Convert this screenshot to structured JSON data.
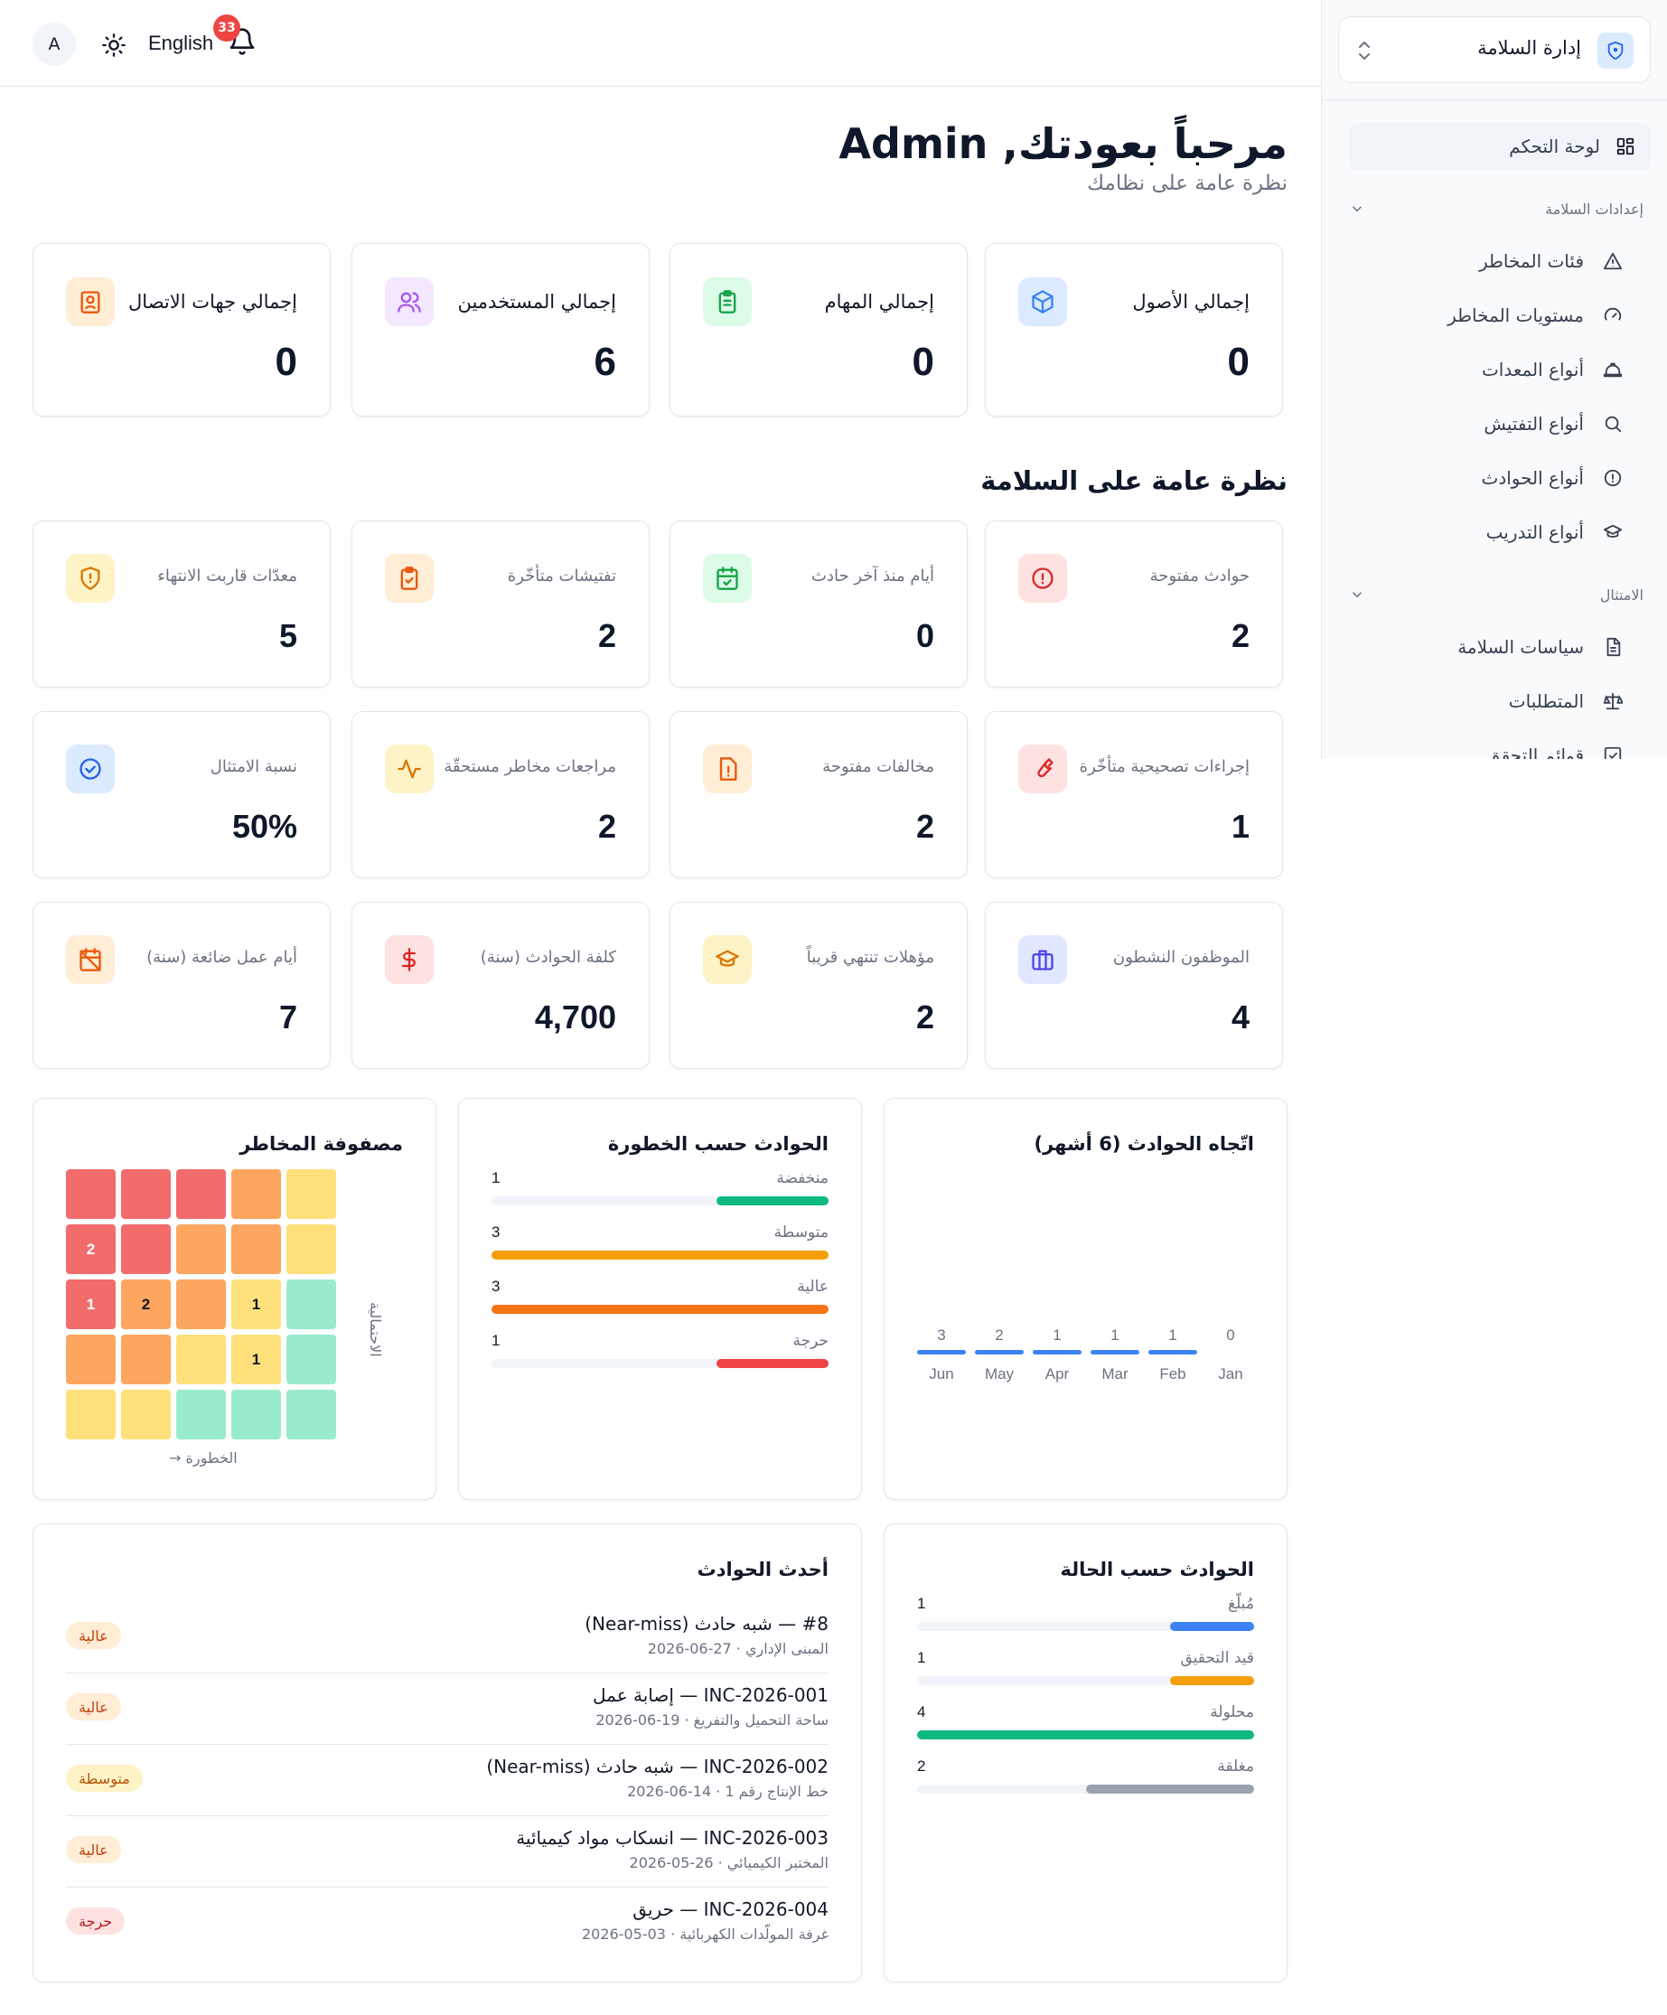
{
  "header": {
    "avatar_initial": "A",
    "theme_icon": "sun-icon",
    "language": "English",
    "notification_count": "33",
    "bell_icon": "bell-icon"
  },
  "sidebar": {
    "brand": "إدارة السلامة",
    "items": [
      {
        "label": "لوحة التحكم",
        "icon": "dashboard-grid-icon"
      }
    ],
    "sections": [
      {
        "title": "إعدادات السلامة",
        "items": [
          {
            "label": "فئات المخاطر",
            "icon": "warning-triangle-icon"
          },
          {
            "label": "مستويات المخاطر",
            "icon": "gauge-icon"
          },
          {
            "label": "أنواع المعدات",
            "icon": "hard-hat-icon"
          },
          {
            "label": "أنواع التفتيش",
            "icon": "search-icon"
          },
          {
            "label": "أنواع الحوادث",
            "icon": "alert-circle-icon"
          },
          {
            "label": "أنواع التدريب",
            "icon": "graduation-cap-icon"
          }
        ]
      },
      {
        "title": "الامتثال",
        "items": [
          {
            "label": "سياسات السلامة",
            "icon": "document-icon"
          },
          {
            "label": "المتطلبات",
            "icon": "scale-icon"
          },
          {
            "label": "قوائم التحقق",
            "icon": "checkbox-icon"
          }
        ]
      }
    ]
  },
  "welcome": {
    "title": "مرحباً بعودتك, Admin",
    "subtitle": "نظرة عامة على نظامك"
  },
  "totals": [
    {
      "label": "إجمالي الأصول",
      "value": "0",
      "icon": "cube-icon",
      "color": "#3b82f6",
      "bg": "#dbeafe"
    },
    {
      "label": "إجمالي المهام",
      "value": "0",
      "icon": "clipboard-list-icon",
      "color": "#16a34a",
      "bg": "#dcfce7"
    },
    {
      "label": "إجمالي المستخدمين",
      "value": "6",
      "icon": "users-icon",
      "color": "#a855f7",
      "bg": "#f3e8ff"
    },
    {
      "label": "إجمالي جهات الاتصال",
      "value": "0",
      "icon": "contact-book-icon",
      "color": "#ea580c",
      "bg": "#ffedd5"
    }
  ],
  "safety_title": "نظرة عامة على السلامة",
  "safety": [
    {
      "label": "حوادث مفتوحة",
      "value": "2",
      "icon": "alert-circle-icon",
      "color": "#dc2626",
      "bg": "#fee2e2"
    },
    {
      "label": "أيام منذ آخر حادث",
      "value": "0",
      "icon": "calendar-check-icon",
      "color": "#16a34a",
      "bg": "#dcfce7"
    },
    {
      "label": "تفتيشات متأخّرة",
      "value": "2",
      "icon": "clipboard-check-icon",
      "color": "#ea580c",
      "bg": "#ffedd5"
    },
    {
      "label": "معدّات قاربت الانتهاء",
      "value": "5",
      "icon": "shield-alert-icon",
      "color": "#d97706",
      "bg": "#fef3c7"
    },
    {
      "label": "إجراءات تصحيحية متأخّرة",
      "value": "1",
      "icon": "wrench-icon",
      "color": "#dc2626",
      "bg": "#fee2e2"
    },
    {
      "label": "مخالفات مفتوحة",
      "value": "2",
      "icon": "file-alert-icon",
      "color": "#ea580c",
      "bg": "#ffedd5"
    },
    {
      "label": "مراجعات مخاطر مستحقّة",
      "value": "2",
      "icon": "activity-icon",
      "color": "#d97706",
      "bg": "#fef3c7"
    },
    {
      "label": "نسبة الامتثال",
      "value": "50%",
      "icon": "check-circle-icon",
      "color": "#2563eb",
      "bg": "#dbeafe"
    },
    {
      "label": "الموظفون النشطون",
      "value": "4",
      "icon": "briefcase-icon",
      "color": "#4f46e5",
      "bg": "#e0e7ff"
    },
    {
      "label": "مؤهلات تنتهي قريباً",
      "value": "2",
      "icon": "graduation-cap-icon",
      "color": "#d97706",
      "bg": "#fef3c7"
    },
    {
      "label": "كلفة الحوادث (سنة)",
      "value": "4,700",
      "icon": "dollar-icon",
      "color": "#dc2626",
      "bg": "#fee2e2"
    },
    {
      "label": "أيام عمل ضائعة (سنة)",
      "value": "7",
      "icon": "calendar-off-icon",
      "color": "#ea580c",
      "bg": "#ffedd5"
    }
  ],
  "trend": {
    "title": "اتّجاه الحوادث (6 أشهر)",
    "color": "#3b82f6"
  },
  "severity": {
    "title": "الحوادث حسب الخطورة",
    "max": 3,
    "rows": [
      {
        "label": "منخفضة",
        "value": 1,
        "color": "#10b981"
      },
      {
        "label": "متوسطة",
        "value": 3,
        "color": "#f59e0b"
      },
      {
        "label": "عالية",
        "value": 3,
        "color": "#f97316"
      },
      {
        "label": "حرجة",
        "value": 1,
        "color": "#ef4444"
      }
    ]
  },
  "matrix": {
    "title": "مصفوفة المخاطر",
    "y_label": "الاحتمالية",
    "x_label": "الخطورة →",
    "rows": [
      [
        {
          "c": "r",
          "v": ""
        },
        {
          "c": "r",
          "v": ""
        },
        {
          "c": "r",
          "v": ""
        },
        {
          "c": "o",
          "v": ""
        },
        {
          "c": "y",
          "v": ""
        }
      ],
      [
        {
          "c": "r",
          "v": "2"
        },
        {
          "c": "r",
          "v": ""
        },
        {
          "c": "o",
          "v": ""
        },
        {
          "c": "o",
          "v": ""
        },
        {
          "c": "y",
          "v": ""
        }
      ],
      [
        {
          "c": "r",
          "v": "1"
        },
        {
          "c": "o",
          "v": "2"
        },
        {
          "c": "o",
          "v": ""
        },
        {
          "c": "y",
          "v": "1"
        },
        {
          "c": "g",
          "v": ""
        }
      ],
      [
        {
          "c": "o",
          "v": ""
        },
        {
          "c": "o",
          "v": ""
        },
        {
          "c": "y",
          "v": ""
        },
        {
          "c": "y",
          "v": "1"
        },
        {
          "c": "g",
          "v": ""
        }
      ],
      [
        {
          "c": "y",
          "v": ""
        },
        {
          "c": "y",
          "v": ""
        },
        {
          "c": "g",
          "v": ""
        },
        {
          "c": "g",
          "v": ""
        },
        {
          "c": "g",
          "v": ""
        }
      ]
    ]
  },
  "status": {
    "title": "الحوادث حسب الحالة",
    "max": 4,
    "rows": [
      {
        "label": "مُبلّغ",
        "value": 1,
        "color": "#3b82f6"
      },
      {
        "label": "قيد التحقيق",
        "value": 1,
        "color": "#f59e0b"
      },
      {
        "label": "محلولة",
        "value": 4,
        "color": "#10b981"
      },
      {
        "label": "مغلقة",
        "value": 2,
        "color": "#9ca3af"
      }
    ]
  },
  "recent": {
    "title": "أحدث الحوادث",
    "items": [
      {
        "title": "#8 — شبه حادث (Near-miss)",
        "meta": "المبنى الإداري · 27-06-2026",
        "severity": "عالية",
        "level": "high"
      },
      {
        "title": "INC-2026-001 — إصابة عمل",
        "meta": "ساحة التحميل والتفريغ · 19-06-2026",
        "severity": "عالية",
        "level": "high"
      },
      {
        "title": "INC-2026-002 — شبه حادث (Near-miss)",
        "meta": "خط الإنتاج رقم 1 · 14-06-2026",
        "severity": "متوسطة",
        "level": "med"
      },
      {
        "title": "INC-2026-003 — انسكاب مواد كيميائية",
        "meta": "المختبر الكيميائي · 26-05-2026",
        "severity": "عالية",
        "level": "high"
      },
      {
        "title": "INC-2026-004 — حريق",
        "meta": "غرفة المولّدات الكهربائية · 03-05-2026",
        "severity": "حرجة",
        "level": "crit"
      }
    ]
  },
  "chart_data": {
    "type": "bar",
    "title": "اتّجاه الحوادث (6 أشهر)",
    "categories": [
      "Jun",
      "May",
      "Apr",
      "Mar",
      "Feb",
      "Jan"
    ],
    "values": [
      3,
      2,
      1,
      1,
      1,
      0
    ],
    "xlabel": "",
    "ylabel": ""
  }
}
